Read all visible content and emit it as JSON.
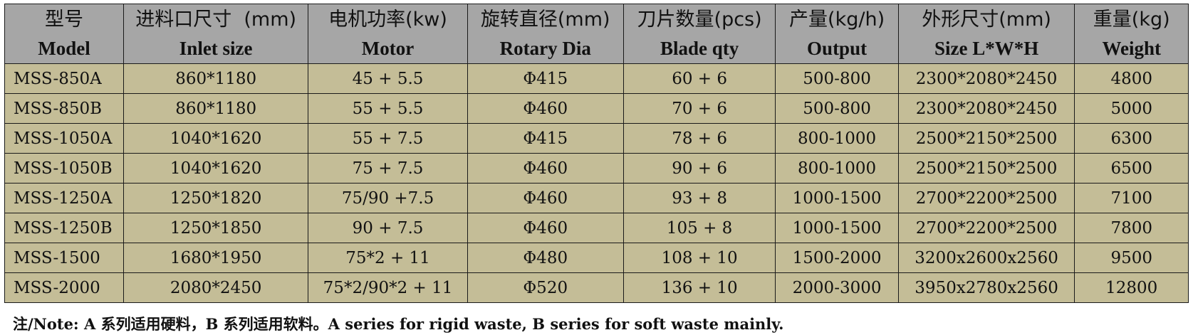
{
  "table": {
    "headers": [
      {
        "cn": "型号",
        "en": "Model"
      },
      {
        "cn": "进料口尺寸  (mm)",
        "en": "Inlet size"
      },
      {
        "cn": "电机功率(kw)",
        "en": "Motor"
      },
      {
        "cn": "旋转直径(mm)",
        "en": "Rotary Dia"
      },
      {
        "cn": "刀片数量(pcs)",
        "en": "Blade qty"
      },
      {
        "cn": "产量(kg/h)",
        "en": "Output"
      },
      {
        "cn": "外形尺寸(mm)",
        "en": "Size L*W*H"
      },
      {
        "cn": "重量(kg)",
        "en": "Weight"
      }
    ],
    "rows": [
      [
        "MSS-850A",
        "860*1180",
        "45 + 5.5",
        "Φ415",
        "60 + 6",
        "500-800",
        "2300*2080*2450",
        "4800"
      ],
      [
        "MSS-850B",
        "860*1180",
        "55 + 5.5",
        "Φ460",
        "70 + 6",
        "500-800",
        "2300*2080*2450",
        "5000"
      ],
      [
        "MSS-1050A",
        "1040*1620",
        "55 + 7.5",
        "Φ415",
        "78 + 6",
        "800-1000",
        "2500*2150*2500",
        "6300"
      ],
      [
        "MSS-1050B",
        "1040*1620",
        "75 + 7.5",
        "Φ460",
        "90 + 6",
        "800-1000",
        "2500*2150*2500",
        "6500"
      ],
      [
        "MSS-1250A",
        "1250*1820",
        "75/90 +7.5",
        "Φ460",
        "93 + 8",
        "1000-1500",
        "2700*2200*2500",
        "7100"
      ],
      [
        "MSS-1250B",
        "1250*1850",
        "90 + 7.5",
        "Φ460",
        "105 + 8",
        "1000-1500",
        "2700*2200*2500",
        "7800"
      ],
      [
        "MSS-1500",
        "1680*1950",
        "75*2 + 11",
        "Φ480",
        "108 + 10",
        "1500-2000",
        "3200x2600x2560",
        "9500"
      ],
      [
        "MSS-2000",
        "2080*2450",
        "75*2/90*2 + 11",
        "Φ520",
        "136 + 10",
        "2000-3000",
        "3950x2780x2560",
        "12800"
      ]
    ]
  },
  "note": "注/Note: A 系列适用硬料，B 系列适用软料。A series for rigid waste, B series for soft waste mainly.",
  "colors": {
    "header_bg": "#a6a6a6",
    "row_bg": "#c4bd97",
    "border": "#1a1a1a"
  }
}
